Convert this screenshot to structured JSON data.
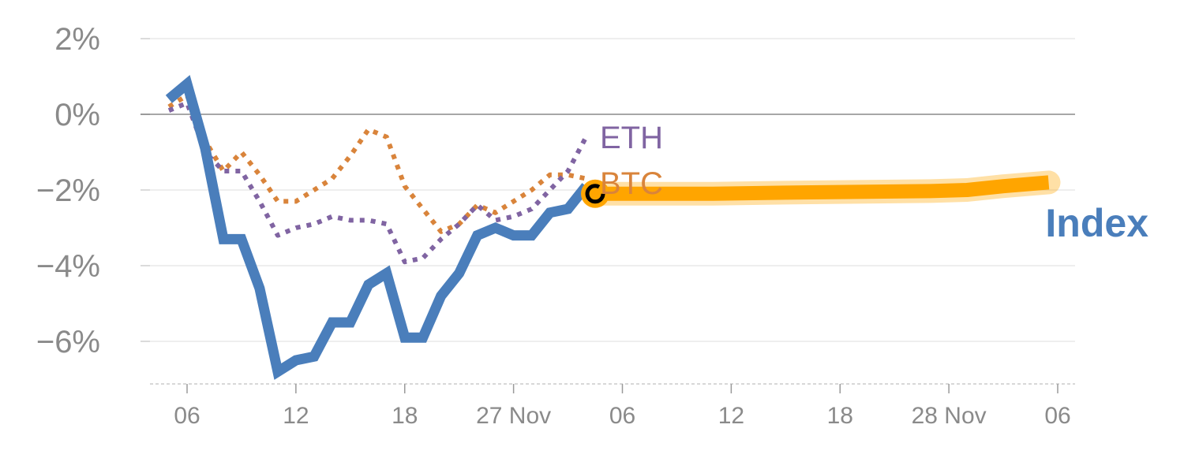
{
  "chart_data": {
    "type": "line",
    "title": "",
    "xlabel": "",
    "ylabel": "",
    "ylim": [
      -7.2,
      2.2
    ],
    "y_ticks": [
      {
        "value": 2,
        "label": "2%"
      },
      {
        "value": 0,
        "label": "0%"
      },
      {
        "value": -2,
        "label": "−2%"
      },
      {
        "value": -4,
        "label": "−4%"
      },
      {
        "value": -6,
        "label": "−6%"
      }
    ],
    "x_ticks": [
      {
        "x": 1,
        "label": "06"
      },
      {
        "x": 7,
        "label": "12"
      },
      {
        "x": 13,
        "label": "18"
      },
      {
        "x": 19,
        "label": "27 Nov"
      },
      {
        "x": 25,
        "label": "06"
      },
      {
        "x": 31,
        "label": "12"
      },
      {
        "x": 37,
        "label": "18"
      },
      {
        "x": 43,
        "label": "28 Nov"
      },
      {
        "x": 49,
        "label": "06"
      }
    ],
    "xlim": [
      -1,
      50
    ],
    "grid": true,
    "series": [
      {
        "name": "Index",
        "color": "#4a7ebb",
        "style": "solid",
        "x": [
          0,
          1,
          2,
          3,
          4,
          5,
          6,
          7,
          8,
          9,
          10,
          11,
          12,
          13,
          14,
          15,
          16,
          17,
          18,
          19,
          20,
          21,
          22,
          23
        ],
        "values": [
          0.4,
          0.8,
          -0.9,
          -3.3,
          -3.3,
          -4.6,
          -6.8,
          -6.5,
          -6.4,
          -5.5,
          -5.5,
          -4.5,
          -4.2,
          -5.9,
          -5.9,
          -4.8,
          -4.2,
          -3.2,
          -3.0,
          -3.2,
          -3.2,
          -2.6,
          -2.5,
          -1.9
        ]
      },
      {
        "name": "ETH",
        "color": "#8064a2",
        "style": "dotted",
        "x": [
          0,
          1,
          2,
          3,
          4,
          5,
          6,
          7,
          8,
          9,
          10,
          11,
          12,
          13,
          14,
          15,
          16,
          17,
          18,
          19,
          20,
          21,
          22,
          23
        ],
        "values": [
          0.1,
          0.3,
          -1.0,
          -1.5,
          -1.5,
          -2.3,
          -3.2,
          -3.0,
          -2.9,
          -2.7,
          -2.8,
          -2.8,
          -2.9,
          -3.9,
          -3.8,
          -3.3,
          -2.9,
          -2.4,
          -2.8,
          -2.7,
          -2.5,
          -2.0,
          -1.5,
          -0.6
        ]
      },
      {
        "name": "BTC",
        "color": "#d9843b",
        "style": "dotted",
        "x": [
          0,
          1,
          2,
          3,
          4,
          5,
          6,
          7,
          8,
          9,
          10,
          11,
          12,
          13,
          14,
          15,
          16,
          17,
          18,
          19,
          20,
          21,
          22,
          23
        ],
        "values": [
          0.2,
          0.5,
          -0.7,
          -1.5,
          -1.0,
          -1.6,
          -2.3,
          -2.3,
          -2.0,
          -1.7,
          -1.1,
          -0.4,
          -0.6,
          -1.9,
          -2.5,
          -3.1,
          -2.9,
          -2.4,
          -2.6,
          -2.3,
          -2.0,
          -1.6,
          -1.6,
          -1.7
        ]
      },
      {
        "name": "",
        "color": "#ffa500",
        "style": "thick",
        "x": [
          23.5,
          26,
          30,
          34,
          38,
          42,
          44,
          46,
          48.5
        ],
        "values": [
          -2.1,
          -2.1,
          -2.1,
          -2.07,
          -2.05,
          -2.03,
          -2.0,
          -1.9,
          -1.8
        ]
      }
    ],
    "marker": {
      "x": 23.5,
      "value": -2.1,
      "fill": "#ffa500",
      "stroke": "#000000"
    },
    "labels": {
      "eth": "ETH",
      "btc": "BTC",
      "index": "Index"
    }
  }
}
